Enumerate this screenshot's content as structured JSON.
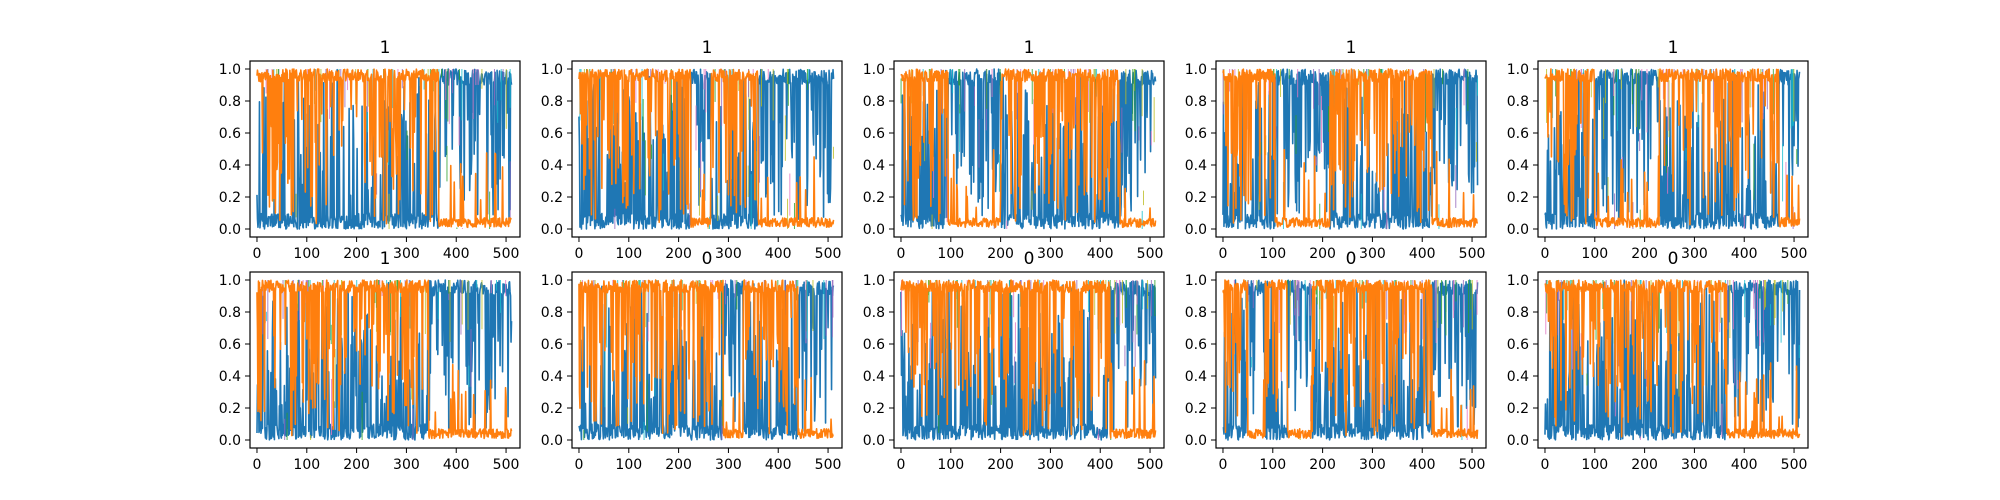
{
  "chart_data": [
    {
      "type": "area",
      "title": "1",
      "xlim": [
        -14,
        528
      ],
      "ylim": [
        -0.05,
        1.05
      ],
      "xticks": [
        "0",
        "100",
        "200",
        "300",
        "400",
        "500"
      ],
      "yticks": [
        "0.0",
        "0.2",
        "0.4",
        "0.6",
        "0.8",
        "1.0"
      ],
      "series": [
        {
          "color": "#ff7f0e",
          "regimes": [
            {
              "from": 0,
              "to": 365,
              "level": "high"
            },
            {
              "from": 365,
              "to": 512,
              "level": "low"
            }
          ]
        },
        {
          "color": "#1f77b4",
          "regimes": [
            {
              "from": 0,
              "to": 365,
              "level": "low"
            },
            {
              "from": 365,
              "to": 512,
              "level": "high"
            }
          ]
        }
      ]
    },
    {
      "type": "area",
      "title": "1",
      "xlim": [
        -14,
        528
      ],
      "ylim": [
        -0.05,
        1.05
      ],
      "xticks": [
        "0",
        "100",
        "200",
        "300",
        "400",
        "500"
      ],
      "yticks": [
        "0.0",
        "0.2",
        "0.4",
        "0.6",
        "0.8",
        "1.0"
      ],
      "series": [
        {
          "color": "#ff7f0e",
          "regimes": [
            {
              "from": 0,
              "to": 225,
              "level": "high"
            },
            {
              "from": 225,
              "to": 265,
              "level": "low"
            },
            {
              "from": 265,
              "to": 360,
              "level": "high"
            },
            {
              "from": 360,
              "to": 512,
              "level": "low"
            }
          ]
        },
        {
          "color": "#1f77b4",
          "regimes": [
            {
              "from": 0,
              "to": 225,
              "level": "low"
            },
            {
              "from": 225,
              "to": 265,
              "level": "high"
            },
            {
              "from": 265,
              "to": 360,
              "level": "low"
            },
            {
              "from": 360,
              "to": 512,
              "level": "high"
            }
          ]
        }
      ]
    },
    {
      "type": "area",
      "title": "1",
      "xlim": [
        -14,
        528
      ],
      "ylim": [
        -0.05,
        1.05
      ],
      "xticks": [
        "0",
        "100",
        "200",
        "300",
        "400",
        "500"
      ],
      "yticks": [
        "0.0",
        "0.2",
        "0.4",
        "0.6",
        "0.8",
        "1.0"
      ],
      "series": [
        {
          "color": "#ff7f0e",
          "regimes": [
            {
              "from": 0,
              "to": 95,
              "level": "high"
            },
            {
              "from": 95,
              "to": 200,
              "level": "low"
            },
            {
              "from": 200,
              "to": 440,
              "level": "high"
            },
            {
              "from": 440,
              "to": 512,
              "level": "low"
            }
          ]
        },
        {
          "color": "#1f77b4",
          "regimes": [
            {
              "from": 0,
              "to": 95,
              "level": "low"
            },
            {
              "from": 95,
              "to": 200,
              "level": "high"
            },
            {
              "from": 200,
              "to": 440,
              "level": "low"
            },
            {
              "from": 440,
              "to": 512,
              "level": "high"
            }
          ]
        }
      ]
    },
    {
      "type": "area",
      "title": "1",
      "xlim": [
        -14,
        528
      ],
      "ylim": [
        -0.05,
        1.05
      ],
      "xticks": [
        "0",
        "100",
        "200",
        "300",
        "400",
        "500"
      ],
      "yticks": [
        "0.0",
        "0.2",
        "0.4",
        "0.6",
        "0.8",
        "1.0"
      ],
      "series": [
        {
          "color": "#ff7f0e",
          "regimes": [
            {
              "from": 0,
              "to": 105,
              "level": "high"
            },
            {
              "from": 105,
              "to": 215,
              "level": "low"
            },
            {
              "from": 215,
              "to": 420,
              "level": "high"
            },
            {
              "from": 420,
              "to": 512,
              "level": "low"
            }
          ]
        },
        {
          "color": "#1f77b4",
          "regimes": [
            {
              "from": 0,
              "to": 105,
              "level": "low"
            },
            {
              "from": 105,
              "to": 215,
              "level": "high"
            },
            {
              "from": 215,
              "to": 420,
              "level": "low"
            },
            {
              "from": 420,
              "to": 512,
              "level": "high"
            }
          ]
        }
      ]
    },
    {
      "type": "area",
      "title": "1",
      "xlim": [
        -14,
        528
      ],
      "ylim": [
        -0.05,
        1.05
      ],
      "xticks": [
        "0",
        "100",
        "200",
        "300",
        "400",
        "500"
      ],
      "yticks": [
        "0.0",
        "0.2",
        "0.4",
        "0.6",
        "0.8",
        "1.0"
      ],
      "series": [
        {
          "color": "#ff7f0e",
          "regimes": [
            {
              "from": 0,
              "to": 100,
              "level": "high"
            },
            {
              "from": 100,
              "to": 230,
              "level": "low"
            },
            {
              "from": 230,
              "to": 470,
              "level": "high"
            },
            {
              "from": 470,
              "to": 512,
              "level": "low"
            }
          ]
        },
        {
          "color": "#1f77b4",
          "regimes": [
            {
              "from": 0,
              "to": 100,
              "level": "low"
            },
            {
              "from": 100,
              "to": 230,
              "level": "high"
            },
            {
              "from": 230,
              "to": 470,
              "level": "low"
            },
            {
              "from": 470,
              "to": 512,
              "level": "high"
            }
          ]
        }
      ]
    },
    {
      "type": "area",
      "title": "1",
      "xlim": [
        -14,
        528
      ],
      "ylim": [
        -0.05,
        1.05
      ],
      "xticks": [
        "0",
        "100",
        "200",
        "300",
        "400",
        "500"
      ],
      "yticks": [
        "0.0",
        "0.2",
        "0.4",
        "0.6",
        "0.8",
        "1.0"
      ],
      "series": [
        {
          "color": "#ff7f0e",
          "regimes": [
            {
              "from": 0,
              "to": 345,
              "level": "high"
            },
            {
              "from": 345,
              "to": 512,
              "level": "low"
            }
          ]
        },
        {
          "color": "#1f77b4",
          "regimes": [
            {
              "from": 0,
              "to": 345,
              "level": "low"
            },
            {
              "from": 345,
              "to": 512,
              "level": "high"
            }
          ]
        }
      ]
    },
    {
      "type": "area",
      "title": "0",
      "xlim": [
        -14,
        528
      ],
      "ylim": [
        -0.05,
        1.05
      ],
      "xticks": [
        "0",
        "100",
        "200",
        "300",
        "400",
        "500"
      ],
      "yticks": [
        "0.0",
        "0.2",
        "0.4",
        "0.6",
        "0.8",
        "1.0"
      ],
      "series": [
        {
          "color": "#ff7f0e",
          "regimes": [
            {
              "from": 0,
              "to": 290,
              "level": "high"
            },
            {
              "from": 290,
              "to": 330,
              "level": "low"
            },
            {
              "from": 330,
              "to": 440,
              "level": "high"
            },
            {
              "from": 440,
              "to": 512,
              "level": "low"
            }
          ]
        },
        {
          "color": "#1f77b4",
          "regimes": [
            {
              "from": 0,
              "to": 290,
              "level": "low"
            },
            {
              "from": 290,
              "to": 330,
              "level": "high"
            },
            {
              "from": 330,
              "to": 440,
              "level": "low"
            },
            {
              "from": 440,
              "to": 512,
              "level": "high"
            }
          ]
        }
      ]
    },
    {
      "type": "area",
      "title": "0",
      "xlim": [
        -14,
        528
      ],
      "ylim": [
        -0.05,
        1.05
      ],
      "xticks": [
        "0",
        "100",
        "200",
        "300",
        "400",
        "500"
      ],
      "yticks": [
        "0.0",
        "0.2",
        "0.4",
        "0.6",
        "0.8",
        "1.0"
      ],
      "series": [
        {
          "color": "#ff7f0e",
          "regimes": [
            {
              "from": 0,
              "to": 420,
              "level": "high"
            },
            {
              "from": 420,
              "to": 512,
              "level": "low"
            }
          ]
        },
        {
          "color": "#1f77b4",
          "regimes": [
            {
              "from": 0,
              "to": 420,
              "level": "low"
            },
            {
              "from": 420,
              "to": 512,
              "level": "high"
            }
          ]
        }
      ]
    },
    {
      "type": "area",
      "title": "0",
      "xlim": [
        -14,
        528
      ],
      "ylim": [
        -0.05,
        1.05
      ],
      "xticks": [
        "0",
        "100",
        "200",
        "300",
        "400",
        "500"
      ],
      "yticks": [
        "0.0",
        "0.2",
        "0.4",
        "0.6",
        "0.8",
        "1.0"
      ],
      "series": [
        {
          "color": "#ff7f0e",
          "regimes": [
            {
              "from": 0,
              "to": 50,
              "level": "high"
            },
            {
              "from": 50,
              "to": 85,
              "level": "low"
            },
            {
              "from": 85,
              "to": 130,
              "level": "high"
            },
            {
              "from": 130,
              "to": 180,
              "level": "low"
            },
            {
              "from": 180,
              "to": 420,
              "level": "high"
            },
            {
              "from": 420,
              "to": 512,
              "level": "low"
            }
          ]
        },
        {
          "color": "#1f77b4",
          "regimes": [
            {
              "from": 0,
              "to": 50,
              "level": "low"
            },
            {
              "from": 50,
              "to": 85,
              "level": "high"
            },
            {
              "from": 85,
              "to": 130,
              "level": "low"
            },
            {
              "from": 130,
              "to": 180,
              "level": "high"
            },
            {
              "from": 180,
              "to": 420,
              "level": "low"
            },
            {
              "from": 420,
              "to": 512,
              "level": "high"
            }
          ]
        }
      ]
    },
    {
      "type": "area",
      "title": "0",
      "xlim": [
        -14,
        528
      ],
      "ylim": [
        -0.05,
        1.05
      ],
      "xticks": [
        "0",
        "100",
        "200",
        "300",
        "400",
        "500"
      ],
      "yticks": [
        "0.0",
        "0.2",
        "0.4",
        "0.6",
        "0.8",
        "1.0"
      ],
      "series": [
        {
          "color": "#ff7f0e",
          "regimes": [
            {
              "from": 0,
              "to": 365,
              "level": "high"
            },
            {
              "from": 365,
              "to": 512,
              "level": "low"
            }
          ]
        },
        {
          "color": "#1f77b4",
          "regimes": [
            {
              "from": 0,
              "to": 365,
              "level": "low"
            },
            {
              "from": 365,
              "to": 512,
              "level": "high"
            }
          ]
        }
      ]
    }
  ]
}
